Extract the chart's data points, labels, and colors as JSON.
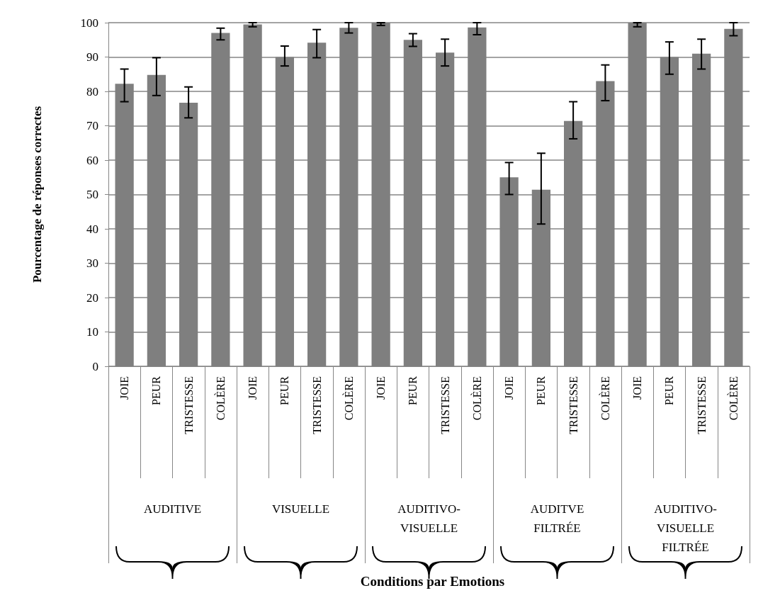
{
  "chart_data": {
    "type": "bar",
    "ylabel": "Pourcentage de réponses correctes",
    "categories": [
      "JOIE",
      "PEUR",
      "TRISTESSE",
      "COLÈRE",
      "JOIE",
      "PEUR",
      "TRISTESSE",
      "COLÈRE",
      "JOIE",
      "PEUR",
      "TRISTESSE",
      "COLÈRE",
      "JOIE",
      "PEUR",
      "TRISTESSE",
      "COLÈRE",
      "JOIE",
      "PEUR",
      "TRISTESSE",
      "COLÈRE"
    ],
    "values": [
      82.2,
      84.8,
      76.7,
      97,
      99.5,
      90,
      94.2,
      98.5,
      100,
      95,
      91.3,
      98.6,
      55,
      51.4,
      71.4,
      83,
      100,
      90,
      91,
      98.2
    ],
    "errors": [
      [
        77,
        86.5
      ],
      [
        78.8,
        89.8
      ],
      [
        72.3,
        81.3
      ],
      [
        95,
        98.4
      ],
      [
        98.8,
        100
      ],
      [
        87.4,
        93.2
      ],
      [
        89.8,
        98
      ],
      [
        97,
        100
      ],
      [
        99.2,
        100
      ],
      [
        93.1,
        96.8
      ],
      [
        87.4,
        95.2
      ],
      [
        96.5,
        100
      ],
      [
        50,
        59.3
      ],
      [
        41.4,
        62
      ],
      [
        66.2,
        77
      ],
      [
        77.3,
        87.7
      ],
      [
        98.8,
        100
      ],
      [
        85,
        94.4
      ],
      [
        86.5,
        95.2
      ],
      [
        96.2,
        100
      ]
    ],
    "color": "#7f7f7f",
    "annotations": [
      "AUDITIVE",
      "VISUELLE",
      "AUDITIVO-\nVISUELLE",
      "AUDITVE\nFILTRÉE",
      "AUDITIVO-\nVISUELLE\nFILTRÉE",
      "Conditions par Emotions"
    ],
    "ylim": [
      0,
      100
    ],
    "yticks": [
      0,
      10,
      20,
      30,
      40,
      50,
      60,
      70,
      80,
      90,
      100
    ],
    "grid": "y"
  }
}
